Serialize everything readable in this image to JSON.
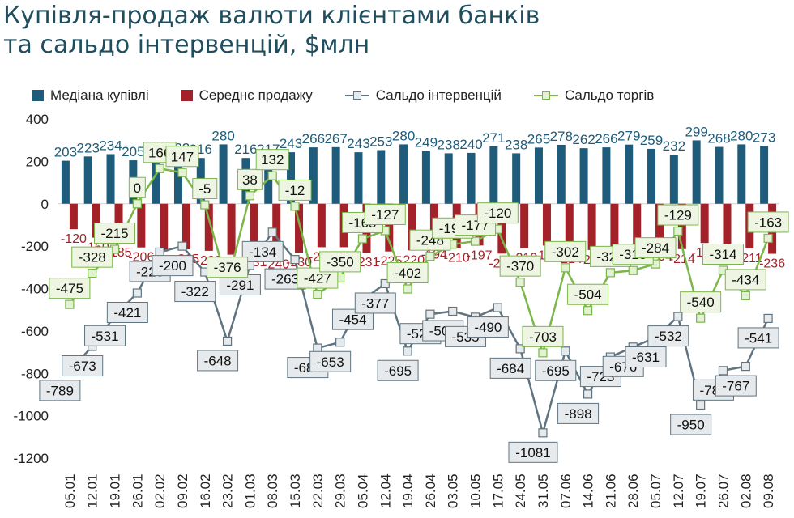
{
  "title": {
    "line1": "Купівля-продаж валюти клієнтами банків",
    "line2": "та сальдо інтервенцій, $млн"
  },
  "colors": {
    "buy": "#1f5b7a",
    "sell": "#a32128",
    "intervention": "#5f7480",
    "trade": "#7ab648"
  },
  "legend": {
    "buy": "Медіана купівлі",
    "sell": "Середнє продажу",
    "intervention": "Сальдо інтервенцій",
    "trade": "Сальдо торгів"
  },
  "chart_data": {
    "type": "bar+line",
    "title": "Купівля-продаж валюти клієнтами банків та сальдо інтервенцій, $млн",
    "ylim": [
      -1200,
      400
    ],
    "yticks": [
      400,
      200,
      0,
      -200,
      -400,
      -600,
      -800,
      -1000,
      -1200
    ],
    "categories": [
      "05.01",
      "12.01",
      "19.01",
      "26.01",
      "02.02",
      "09.02",
      "16.02",
      "23.02",
      "01.03",
      "08.03",
      "15.03",
      "22.03",
      "29.03",
      "05.04",
      "12.04",
      "19.04",
      "26.04",
      "03.05",
      "10.05",
      "17.05",
      "24.05",
      "31.05",
      "07.06",
      "14.06",
      "21.06",
      "28.06",
      "05.07",
      "12.07",
      "19.07",
      "26.07",
      "02.08",
      "09.08"
    ],
    "series": [
      {
        "name": "Медіана купівлі",
        "kind": "bar",
        "values": [
          203,
          223,
          234,
          205,
          230,
          222,
          216,
          280,
          216,
          217,
          243,
          266,
          267,
          243,
          253,
          280,
          249,
          238,
          240,
          271,
          238,
          265,
          278,
          262,
          266,
          279,
          259,
          232,
          299,
          268,
          280,
          273
        ]
      },
      {
        "name": "Середнє продажу",
        "kind": "bar",
        "values": [
          -120,
          -160,
          -185,
          -206,
          -225,
          -215,
          -222,
          -240,
          -231,
          -240,
          -230,
          -205,
          -205,
          -231,
          -225,
          -220,
          -194,
          -210,
          -197,
          -235,
          -210,
          -197,
          -214,
          -218,
          -204,
          -218,
          -204,
          -214,
          -185,
          -213,
          -211,
          -236
        ]
      },
      {
        "name": "Сальдо інтервенцій",
        "kind": "line",
        "values": [
          -789,
          -673,
          -531,
          -421,
          -228,
          -200,
          -322,
          -648,
          -291,
          -134,
          -263,
          -681,
          -653,
          -454,
          -377,
          -695,
          -521,
          -507,
          -535,
          -490,
          -684,
          -1081,
          -695,
          -898,
          -723,
          -676,
          -631,
          -532,
          -950,
          -787,
          -767,
          -541
        ]
      },
      {
        "name": "Сальдо торгів",
        "kind": "line",
        "values": [
          -475,
          -328,
          -215,
          0,
          166,
          147,
          -5,
          -376,
          38,
          132,
          -12,
          -427,
          -350,
          -165,
          -127,
          -402,
          -248,
          -191,
          -177,
          -120,
          -370,
          -703,
          -302,
          -504,
          -325,
          -315,
          -284,
          -129,
          -540,
          -314,
          -434,
          -163
        ]
      }
    ]
  }
}
